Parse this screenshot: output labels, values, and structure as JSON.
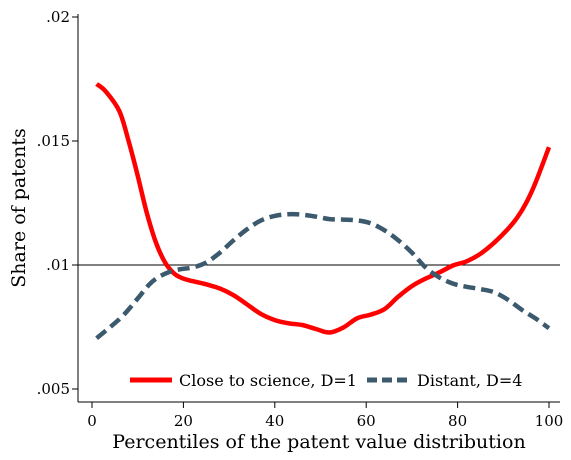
{
  "chart_data": {
    "type": "line",
    "title": "",
    "xlabel": "Percentiles of the patent value distribution",
    "ylabel": "Share of patents",
    "xlim": [
      0,
      100
    ],
    "ylim": [
      0.005,
      0.02
    ],
    "x_ticks": [
      0,
      20,
      40,
      60,
      80,
      100
    ],
    "x_tick_labels": [
      "0",
      "20",
      "40",
      "60",
      "80",
      "100"
    ],
    "y_ticks": [
      0.005,
      0.01,
      0.015,
      0.02
    ],
    "y_tick_labels": [
      ".005",
      ".01",
      ".015",
      ".02"
    ],
    "reference_line": {
      "y": 0.01
    },
    "grid": false,
    "legend_position": "bottom",
    "series": [
      {
        "name": "Close to science, D=1",
        "color": "#ff0000",
        "dash": "solid",
        "x": [
          1,
          3,
          6,
          8,
          10,
          12,
          14,
          16,
          18,
          20,
          22,
          25,
          28,
          31,
          34,
          37,
          40,
          43,
          46,
          49,
          52,
          55,
          58,
          61,
          64,
          67,
          70,
          73,
          76,
          79,
          82,
          85,
          88,
          91,
          93,
          95,
          97,
          100
        ],
        "y": [
          0.0173,
          0.017,
          0.0162,
          0.015,
          0.0136,
          0.0121,
          0.0109,
          0.0101,
          0.00965,
          0.00945,
          0.00935,
          0.00922,
          0.00905,
          0.00878,
          0.0084,
          0.00802,
          0.00778,
          0.00765,
          0.00758,
          0.00742,
          0.00728,
          0.00748,
          0.00785,
          0.008,
          0.00822,
          0.00872,
          0.00915,
          0.00945,
          0.0097,
          0.00998,
          0.01015,
          0.01045,
          0.0109,
          0.01145,
          0.0119,
          0.0125,
          0.0133,
          0.01475
        ]
      },
      {
        "name": "Distant, D=4",
        "color": "#3c5a6d",
        "dash": "dashed",
        "x": [
          1,
          4,
          7,
          10,
          13,
          16,
          19,
          22,
          25,
          28,
          31,
          34,
          37,
          40,
          43,
          46,
          49,
          52,
          55,
          58,
          61,
          64,
          67,
          70,
          73,
          76,
          79,
          82,
          85,
          88,
          91,
          94,
          97,
          100
        ],
        "y": [
          0.00705,
          0.0075,
          0.008,
          0.00865,
          0.0093,
          0.00965,
          0.00982,
          0.0099,
          0.0101,
          0.0105,
          0.011,
          0.01145,
          0.0118,
          0.01198,
          0.01205,
          0.01203,
          0.01195,
          0.01185,
          0.01183,
          0.0118,
          0.01168,
          0.0114,
          0.011,
          0.0105,
          0.0099,
          0.0095,
          0.00925,
          0.00912,
          0.00903,
          0.0089,
          0.0086,
          0.0082,
          0.00785,
          0.00745
        ]
      }
    ]
  }
}
